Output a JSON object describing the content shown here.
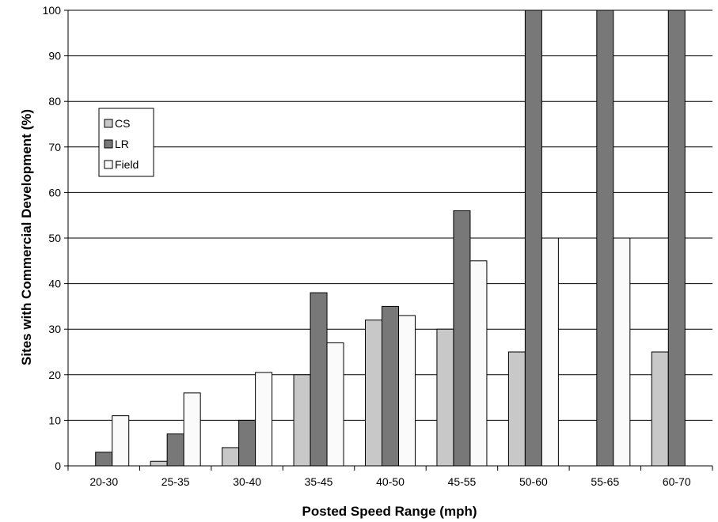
{
  "chart_data": {
    "type": "bar",
    "title": "",
    "xlabel": "Posted Speed Range (mph)",
    "ylabel": "Sites with Commercial Development (%)",
    "ylim": [
      0,
      100
    ],
    "yticks": [
      0,
      10,
      20,
      30,
      40,
      50,
      60,
      70,
      80,
      90,
      100
    ],
    "grid": true,
    "legend_position": "top-left",
    "categories": [
      "20-30",
      "25-35",
      "30-40",
      "35-45",
      "40-50",
      "45-55",
      "50-60",
      "55-65",
      "60-70"
    ],
    "series": [
      {
        "name": "CS",
        "color": "#c8c8c8",
        "values": [
          0,
          1,
          4,
          20,
          32,
          30,
          25,
          0,
          25
        ]
      },
      {
        "name": "LR",
        "color": "#787878",
        "values": [
          3,
          7,
          10,
          38,
          35,
          56,
          100,
          100,
          100
        ]
      },
      {
        "name": "Field",
        "color": "#fafafa",
        "values": [
          11,
          16,
          20.5,
          27,
          33,
          45,
          50,
          50,
          0
        ]
      }
    ]
  }
}
